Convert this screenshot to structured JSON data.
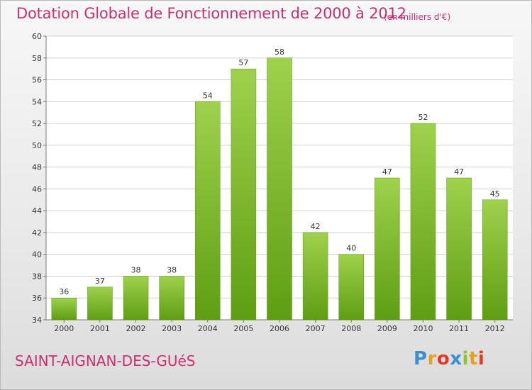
{
  "header": {
    "title": "Dotation Globale de Fonctionnement de 2000 à 2012",
    "unit": "(en milliers d'€)"
  },
  "footer": {
    "commune": "SAINT-AIGNAN-DES-GUéS",
    "logo": "Proxiti",
    "logo_colors": [
      "#3a8fd0",
      "#e8a020",
      "#e23a2a",
      "#3a8fd0",
      "#8cc43c",
      "#e8a020",
      "#e23a2a"
    ]
  },
  "colors": {
    "title": "#c8306e",
    "bar_top": "#9fd14c",
    "bar_bottom": "#5e9e12",
    "grid": "#d0d0d0"
  },
  "chart_data": {
    "type": "bar",
    "categories": [
      "2000",
      "2001",
      "2002",
      "2003",
      "2004",
      "2005",
      "2006",
      "2007",
      "2008",
      "2009",
      "2010",
      "2011",
      "2012"
    ],
    "values": [
      36,
      37,
      38,
      38,
      54,
      57,
      58,
      42,
      40,
      47,
      52,
      47,
      45
    ],
    "title": "Dotation Globale de Fonctionnement de 2000 à 2012",
    "ylim": [
      34,
      60
    ],
    "yticks": [
      34,
      36,
      38,
      40,
      42,
      44,
      46,
      48,
      50,
      52,
      54,
      56,
      58,
      60
    ],
    "grid": true,
    "data_labels": true
  }
}
